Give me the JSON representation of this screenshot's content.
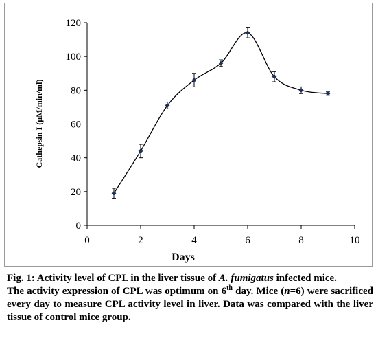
{
  "chart_data": {
    "type": "line",
    "xlabel": "Days",
    "ylabel": "Cathepsin I (µM/min/ml)",
    "xlim": [
      0,
      10
    ],
    "ylim": [
      0,
      120
    ],
    "x_ticks": [
      "0",
      "2",
      "4",
      "6",
      "8",
      "10"
    ],
    "y_ticks": [
      "0",
      "20",
      "40",
      "60",
      "80",
      "100",
      "120"
    ],
    "grid": false,
    "legend": "none",
    "series": [
      {
        "x": [
          1,
          2,
          3,
          4,
          5,
          6,
          7,
          8,
          9
        ],
        "values": [
          19,
          44,
          71,
          86,
          96,
          114,
          88,
          80,
          78
        ],
        "error": [
          3,
          4,
          2,
          4,
          2,
          3,
          3,
          2,
          1
        ]
      }
    ],
    "colors": {
      "line": "#000000",
      "marker": "#1f2f5c",
      "axis": "#000000"
    }
  },
  "caption": {
    "title_prefix": "Fig. 1: Activity level of CPL in the liver tissue of ",
    "title_species": "A. fumigatus",
    "title_suffix": " infected mice.",
    "note_part1": "The activity expression of CPL was optimum on 6",
    "note_sup": "th",
    "note_part2": " day. Mice (",
    "note_n": "n",
    "note_part3": "=6) were sacrificed every day to measure CPL activity level in liver. Data was compared with the liver tissue of control mice group."
  }
}
